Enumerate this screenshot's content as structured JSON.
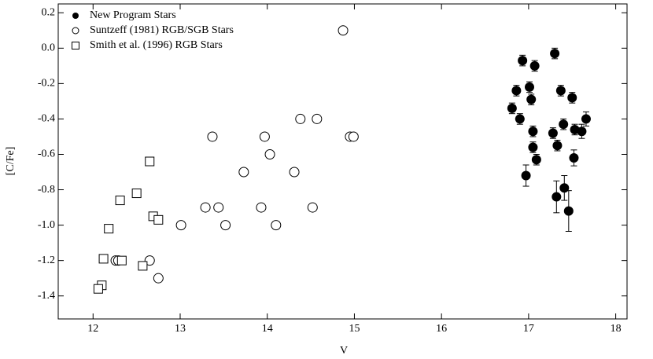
{
  "chart_data": {
    "type": "scatter",
    "x_label": "V",
    "y_label": "[C/Fe]",
    "xlim": [
      11.6,
      18.13
    ],
    "ylim": [
      -1.53,
      0.25
    ],
    "xticks": [
      12,
      13,
      14,
      15,
      16,
      17,
      18
    ],
    "yticks": [
      0.2,
      {
        "value": 0,
        "label": "0.0"
      },
      -0.2,
      -0.4,
      -0.6,
      -0.8,
      {
        "value": -1,
        "label": "-1.0"
      },
      -1.2,
      -1.4
    ],
    "legend": "upper left",
    "series": [
      {
        "name": "New Program Stars",
        "color": "#000000",
        "marker": "filled-circle",
        "x": [
          16.81,
          16.86,
          16.9,
          16.93,
          16.97,
          17.01,
          17.03,
          17.05,
          17.05,
          17.07,
          17.09,
          17.28,
          17.3,
          17.32,
          17.33,
          17.37,
          17.4,
          17.41,
          17.46,
          17.5,
          17.52,
          17.53,
          17.61,
          17.66
        ],
        "values": [
          -0.34,
          -0.24,
          -0.4,
          -0.07,
          -0.72,
          -0.22,
          -0.29,
          -0.47,
          -0.56,
          -0.1,
          -0.63,
          -0.48,
          -0.03,
          -0.84,
          -0.55,
          -0.24,
          -0.43,
          -0.79,
          -0.92,
          -0.28,
          -0.62,
          -0.46,
          -0.47,
          -0.4
        ],
        "errors": [
          0.03,
          0.03,
          0.03,
          0.03,
          0.06,
          0.03,
          0.03,
          0.03,
          0.03,
          0.03,
          0.03,
          0.03,
          0.03,
          0.09,
          0.03,
          0.03,
          0.03,
          0.07,
          0.115,
          0.03,
          0.045,
          0.03,
          0.04,
          0.04
        ]
      },
      {
        "name": "Suntzeff (1981) RGB/SGB Stars",
        "color": "#000000",
        "marker": "open-circle",
        "x": [
          14.87,
          13.37,
          13.97,
          14.38,
          14.57,
          14.95,
          14.99,
          13.73,
          14.31,
          14.03,
          13.29,
          13.44,
          13.93,
          14.52,
          13.01,
          13.52,
          14.1,
          12.26,
          12.29,
          12.65,
          12.75
        ],
        "values": [
          0.1,
          -0.5,
          -0.5,
          -0.4,
          -0.4,
          -0.5,
          -0.5,
          -0.7,
          -0.7,
          -0.6,
          -0.9,
          -0.9,
          -0.9,
          -0.9,
          -1.0,
          -1.0,
          -1.0,
          -1.2,
          -1.2,
          -1.2,
          -1.3
        ]
      },
      {
        "name": "Smith et al. (1996) RGB Stars",
        "color": "#000000",
        "marker": "open-square",
        "x": [
          12.5,
          12.65,
          12.31,
          12.69,
          12.75,
          12.18,
          12.12,
          12.33,
          12.57,
          12.1,
          12.06
        ],
        "values": [
          -0.82,
          -0.64,
          -0.86,
          -0.95,
          -0.97,
          -1.02,
          -1.19,
          -1.2,
          -1.23,
          -1.34,
          -1.36
        ]
      }
    ]
  }
}
